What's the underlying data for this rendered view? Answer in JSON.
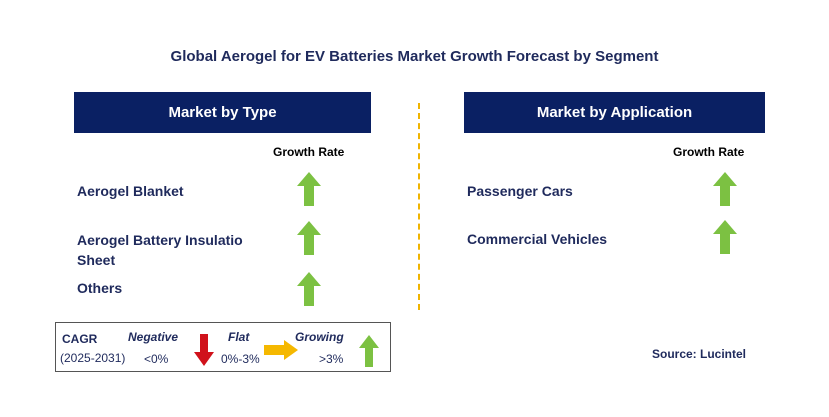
{
  "title": "Global Aerogel for EV Batteries Market Growth Forecast by Segment",
  "type_panel": {
    "header": "Market by Type",
    "growth_rate_label": "Growth Rate",
    "items": [
      {
        "label": "Aerogel Blanket",
        "trend": "growing"
      },
      {
        "label_line1": "Aerogel Battery Insulatio",
        "label_line2": "Sheet",
        "trend": "growing"
      },
      {
        "label": "Others",
        "trend": "growing"
      }
    ]
  },
  "application_panel": {
    "header": "Market by Application",
    "growth_rate_label": "Growth Rate",
    "items": [
      {
        "label": "Passenger Cars",
        "trend": "growing"
      },
      {
        "label": "Commercial Vehicles",
        "trend": "growing"
      }
    ]
  },
  "legend": {
    "cagr_label": "CAGR",
    "period": "(2025-2031)",
    "negative_label": "Negative",
    "negative_range": "<0%",
    "flat_label": "Flat",
    "flat_range": "0%-3%",
    "growing_label": "Growing",
    "growing_range": ">3%"
  },
  "source": "Source: Lucintel",
  "colors": {
    "header_bg": "#0a2063",
    "text_navy": "#1f2a5c",
    "growing_arrow": "#7cc142",
    "negative_arrow": "#d0121b",
    "flat_arrow": "#f5b800",
    "divider": "#f0b400"
  },
  "icons": {
    "growing": "up-arrow-icon",
    "negative": "down-arrow-icon",
    "flat": "right-arrow-icon"
  }
}
